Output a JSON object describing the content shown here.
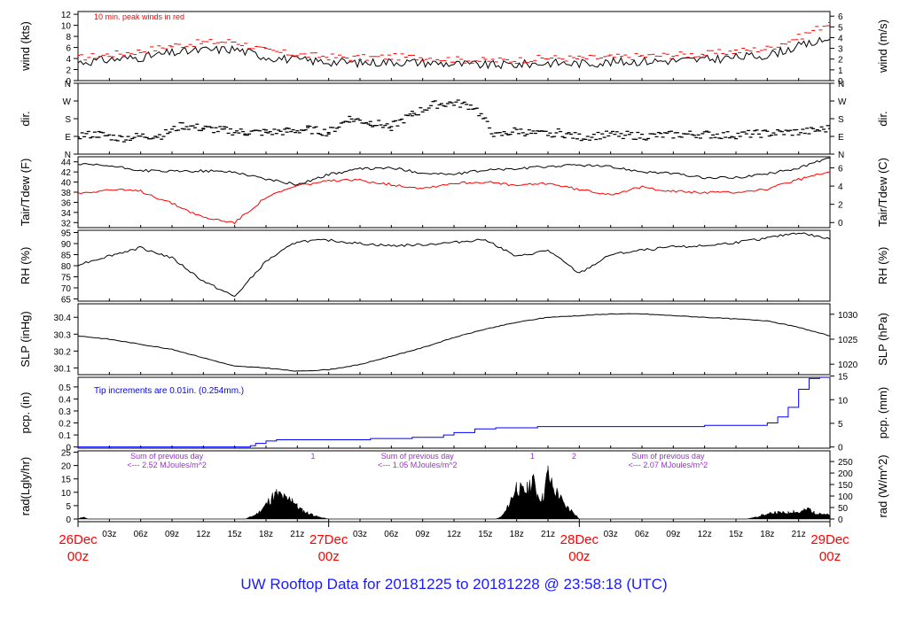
{
  "footer_title": "UW Rooftop Data for 20181225  to  20181228 @ 23:58:18  (UTC)",
  "x_axis": {
    "major_labels": [
      {
        "day": "26Dec",
        "hour": "00z",
        "t": 0
      },
      {
        "day": "27Dec",
        "hour": "00z",
        "t": 24
      },
      {
        "day": "28Dec",
        "hour": "00z",
        "t": 48
      },
      {
        "day": "29Dec",
        "hour": "00z",
        "t": 72
      }
    ],
    "hour_ticks": [
      "03z",
      "06z",
      "09z",
      "12z",
      "15z",
      "18z",
      "21z",
      "03z",
      "06z",
      "09z",
      "12z",
      "15z",
      "18z",
      "21z",
      "03z",
      "06z",
      "09z",
      "12z",
      "15z",
      "18z",
      "21z"
    ],
    "hour_tick_times": [
      3,
      6,
      9,
      12,
      15,
      18,
      21,
      27,
      30,
      33,
      36,
      39,
      42,
      45,
      51,
      54,
      57,
      60,
      63,
      66,
      69
    ],
    "range_hours": [
      0,
      72
    ]
  },
  "colors": {
    "primary": "#000000",
    "dewpoint": "#ff0000",
    "peak_wind": "#ff0000",
    "precip": "#0000ff",
    "annotation_red": "#ff0000",
    "annotation_blue": "#0000ff",
    "annotation_purple": "#9933cc",
    "day_label": "#ff0000"
  },
  "chart_data": [
    {
      "type": "line",
      "panel": "wind",
      "ylabel": "wind (kts)",
      "ylabel_right": "wind (m/s)",
      "ylim": [
        0,
        12.5
      ],
      "yticks": [
        0,
        2,
        4,
        6,
        8,
        10,
        12
      ],
      "ylim_right": [
        0,
        6.43
      ],
      "yticks_right": [
        0,
        1,
        2,
        3,
        4,
        5,
        6
      ],
      "annotation": "10 min. peak winds in red",
      "series": [
        {
          "role": "wind",
          "x": [
            0,
            3,
            6,
            9,
            12,
            15,
            18,
            21,
            24,
            27,
            30,
            33,
            36,
            39,
            42,
            45,
            48,
            51,
            54,
            57,
            60,
            63,
            66,
            69,
            72
          ],
          "y": [
            3.3,
            3.8,
            4.2,
            5.0,
            5.5,
            5.7,
            4.3,
            3.7,
            3.4,
            3.2,
            3.4,
            3.3,
            3.0,
            2.8,
            2.9,
            3.2,
            3.1,
            3.3,
            3.5,
            3.6,
            3.8,
            4.2,
            4.6,
            6.2,
            7.5
          ]
        },
        {
          "role": "peak",
          "x": [
            0,
            3,
            6,
            9,
            12,
            15,
            18,
            21,
            24,
            27,
            30,
            33,
            36,
            39,
            42,
            45,
            48,
            51,
            54,
            57,
            60,
            63,
            66,
            69,
            72
          ],
          "y": [
            4.1,
            4.7,
            5.3,
            6.3,
            6.9,
            7.1,
            5.4,
            4.7,
            4.3,
            4.1,
            4.3,
            4.2,
            3.8,
            3.6,
            3.7,
            4.1,
            4.0,
            4.2,
            4.4,
            4.6,
            4.8,
            5.3,
            5.8,
            7.8,
            10.5
          ]
        }
      ]
    },
    {
      "type": "scatter",
      "panel": "direction",
      "ylabel": "dir.",
      "ylabel_right": "dir.",
      "ylim": [
        0,
        360
      ],
      "yticks": [
        0,
        90,
        180,
        270,
        360
      ],
      "ytick_labels": [
        "N",
        "E",
        "S",
        "W",
        "N"
      ],
      "x": [
        0,
        2,
        4,
        6,
        8,
        10,
        12,
        14,
        16,
        18,
        20,
        22,
        24,
        26,
        28,
        30,
        32,
        34,
        36,
        38,
        40,
        42,
        44,
        46,
        48,
        50,
        52,
        54,
        56,
        58,
        60,
        62,
        64,
        66,
        68,
        70,
        72
      ],
      "y": [
        95,
        100,
        80,
        90,
        95,
        145,
        130,
        120,
        110,
        110,
        115,
        125,
        110,
        180,
        160,
        140,
        200,
        250,
        260,
        240,
        90,
        120,
        100,
        110,
        85,
        95,
        100,
        90,
        95,
        100,
        100,
        95,
        100,
        105,
        110,
        115,
        130
      ]
    },
    {
      "type": "line",
      "panel": "temperature",
      "ylabel": "Tair/Tdew (F)",
      "ylabel_right": "Tair/Tdew (C)",
      "ylim": [
        31,
        45
      ],
      "yticks": [
        32,
        34,
        36,
        38,
        40,
        42,
        44
      ],
      "ylim_right": [
        -0.56,
        7.22
      ],
      "yticks_right": [
        0,
        2,
        4,
        6
      ],
      "series": [
        {
          "role": "air_temp",
          "x": [
            0,
            3,
            6,
            9,
            12,
            15,
            18,
            21,
            24,
            27,
            30,
            33,
            36,
            39,
            42,
            45,
            48,
            51,
            54,
            57,
            60,
            63,
            66,
            69,
            72
          ],
          "y": [
            43.5,
            43.2,
            42.3,
            42.1,
            42.2,
            42.0,
            40.6,
            39.5,
            41.5,
            42.6,
            42.8,
            41.8,
            41.5,
            42.4,
            42.6,
            43.1,
            43.4,
            43.0,
            42.1,
            41.7,
            40.8,
            40.9,
            41.6,
            42.8,
            44.8
          ]
        },
        {
          "role": "dew_point",
          "x": [
            0,
            3,
            6,
            9,
            12,
            15,
            18,
            21,
            24,
            27,
            30,
            33,
            36,
            39,
            42,
            45,
            48,
            51,
            54,
            57,
            60,
            63,
            66,
            69,
            72
          ],
          "y": [
            37.8,
            38.5,
            38.2,
            35.8,
            33.0,
            32.0,
            37.0,
            39.3,
            40.2,
            40.4,
            39.5,
            38.8,
            39.8,
            40.0,
            39.3,
            39.8,
            38.5,
            37.6,
            39.0,
            38.2,
            37.9,
            38.0,
            38.6,
            40.5,
            42.0
          ]
        }
      ]
    },
    {
      "type": "line",
      "panel": "humidity",
      "ylabel": "RH (%)",
      "ylabel_right": "RH (%)",
      "ylim": [
        64,
        96
      ],
      "yticks": [
        65,
        70,
        75,
        80,
        85,
        90,
        95
      ],
      "series": [
        {
          "role": "rh",
          "x": [
            0,
            3,
            6,
            9,
            12,
            15,
            18,
            21,
            24,
            27,
            30,
            33,
            36,
            39,
            42,
            45,
            48,
            51,
            54,
            57,
            60,
            63,
            66,
            69,
            72
          ],
          "y": [
            80.5,
            84.5,
            88.2,
            83.5,
            73.0,
            66.0,
            82.0,
            91.0,
            91.5,
            90.0,
            89.0,
            89.5,
            90.5,
            92.0,
            84.0,
            87.0,
            76.5,
            85.0,
            87.0,
            88.5,
            89.0,
            90.5,
            92.5,
            95.0,
            92.0
          ]
        }
      ]
    },
    {
      "type": "line",
      "panel": "pressure",
      "ylabel": "SLP (inHg)",
      "ylabel_right": "SLP (hPa)",
      "ylim": [
        30.06,
        30.48
      ],
      "yticks": [
        30.1,
        30.2,
        30.3,
        30.4
      ],
      "ylim_right": [
        1017.9,
        1032.1
      ],
      "yticks_right": [
        1020,
        1025,
        1030
      ],
      "series": [
        {
          "role": "slp",
          "x": [
            0,
            3,
            6,
            9,
            12,
            15,
            18,
            21,
            24,
            27,
            30,
            33,
            36,
            39,
            42,
            45,
            48,
            51,
            54,
            57,
            60,
            63,
            66,
            69,
            72
          ],
          "y": [
            30.29,
            30.27,
            30.24,
            30.21,
            30.16,
            30.11,
            30.1,
            30.08,
            30.09,
            30.12,
            30.17,
            30.22,
            30.28,
            30.33,
            30.37,
            30.4,
            30.41,
            30.42,
            30.42,
            30.41,
            30.4,
            30.39,
            30.38,
            30.34,
            30.29
          ]
        }
      ]
    },
    {
      "type": "line",
      "panel": "precip",
      "ylabel": "pcp. (in)",
      "ylabel_right": "pcp. (mm)",
      "ylim": [
        -0.01,
        0.58
      ],
      "yticks": [
        0,
        0.1,
        0.2,
        0.3,
        0.4,
        0.5
      ],
      "ylim_right": [
        -0.254,
        14.73
      ],
      "yticks_right": [
        0,
        5,
        10,
        15
      ],
      "annotation": "Tip increments are 0.01in. (0.254mm.)",
      "series": [
        {
          "role": "precip",
          "x": [
            0,
            16,
            16.5,
            17,
            18,
            19,
            21,
            24,
            28,
            32,
            35,
            36,
            38,
            40,
            42,
            44,
            48,
            52,
            56,
            60,
            64,
            66,
            67,
            68,
            69,
            70,
            71,
            72
          ],
          "y": [
            0,
            0,
            0.01,
            0.03,
            0.05,
            0.06,
            0.06,
            0.06,
            0.07,
            0.08,
            0.1,
            0.12,
            0.15,
            0.16,
            0.16,
            0.17,
            0.17,
            0.17,
            0.17,
            0.18,
            0.18,
            0.2,
            0.25,
            0.33,
            0.48,
            0.57,
            0.58,
            0.58
          ]
        }
      ]
    },
    {
      "type": "area",
      "panel": "radiation",
      "ylabel": "rad(Lgly/hr)",
      "ylabel_right": "rad (W/m^2)",
      "ylim": [
        -1,
        25.5
      ],
      "yticks": [
        0,
        5,
        10,
        15,
        20,
        25
      ],
      "ylim_right": [
        -11.6,
        296.5
      ],
      "yticks_right": [
        0,
        50,
        100,
        150,
        200,
        250
      ],
      "annotations": [
        {
          "text": "Sum of previous day",
          "t": 8.5
        },
        {
          "text": "<--- 2.52 MJoules/m^2",
          "t": 8.5
        },
        {
          "text": "1",
          "t": 22.5
        },
        {
          "text": "Sum of previous day",
          "t": 32.5
        },
        {
          "text": "<--- 1.05 MJoules/m^2",
          "t": 32.5
        },
        {
          "text": "1",
          "t": 43.5
        },
        {
          "text": "2",
          "t": 47.5
        },
        {
          "text": "Sum of previous day",
          "t": 56.5
        },
        {
          "text": "<--- 2.07 MJoules/m^2",
          "t": 56.5
        }
      ],
      "series": [
        {
          "role": "radiation",
          "x": [
            0,
            0.5,
            1,
            16,
            16.5,
            17,
            17.5,
            18,
            18.5,
            19,
            19.5,
            20,
            20.5,
            21,
            21.5,
            22,
            22.5,
            23,
            23.5,
            24,
            40,
            40.5,
            41,
            41.5,
            42,
            42.5,
            43,
            43.5,
            44,
            44.5,
            45,
            45.5,
            46,
            46.5,
            47,
            47.5,
            48,
            64,
            64.5,
            65,
            65.5,
            66,
            66.5,
            67,
            67.5,
            68,
            68.5,
            69,
            69.5,
            70,
            70.5,
            71,
            71.5,
            72
          ],
          "y": [
            0,
            1,
            0,
            0,
            1,
            2,
            4,
            7,
            10,
            12,
            11,
            9,
            10,
            6,
            4,
            3,
            2,
            1,
            0.5,
            0,
            0,
            1,
            4,
            10,
            16,
            13,
            14,
            19,
            12,
            10,
            22,
            14,
            12,
            7,
            5,
            3,
            0,
            0,
            0.5,
            1,
            2,
            2,
            3,
            3,
            3,
            3,
            4,
            3,
            4,
            5,
            3,
            3,
            2,
            2
          ]
        }
      ]
    }
  ]
}
